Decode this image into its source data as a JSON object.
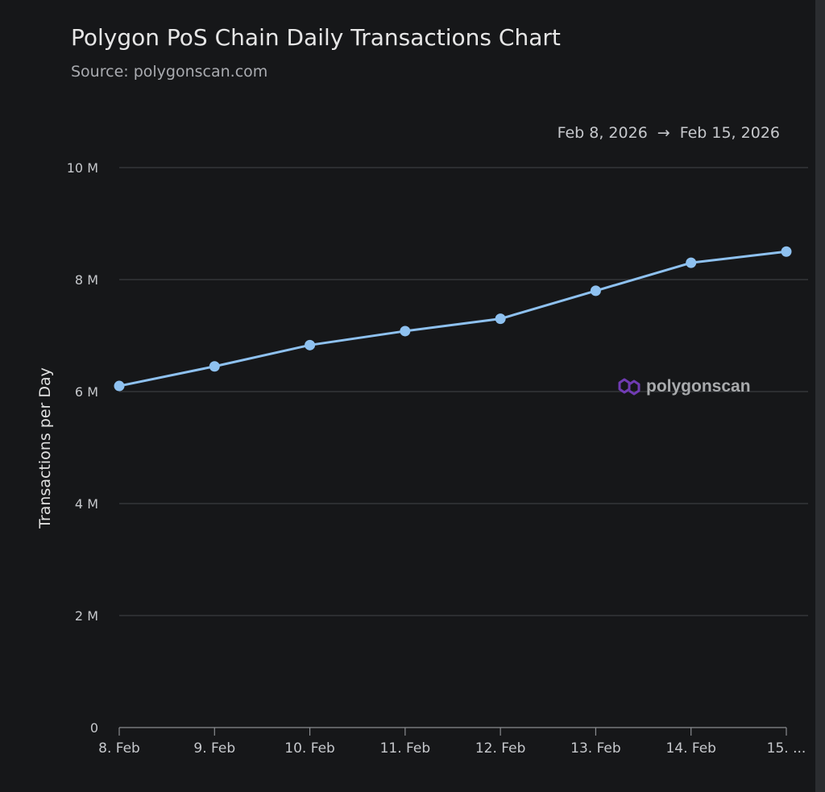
{
  "header": {
    "title": "Polygon PoS Chain Daily Transactions Chart",
    "subtitle": "Source: polygonscan.com",
    "range_start": "Feb 8, 2026",
    "range_arrow": "→",
    "range_end": "Feb 15, 2026"
  },
  "watermark": {
    "text": "polygonscan",
    "icon": "polygon-logo-icon"
  },
  "colors": {
    "background": "#161719",
    "line": "#8ec1f0",
    "grid": "#3a3c40",
    "text": "#c6c8cc",
    "watermark_icon": "#7a3fc4"
  },
  "chart_data": {
    "type": "line",
    "title": "Polygon PoS Chain Daily Transactions Chart",
    "subtitle": "Source: polygonscan.com",
    "xlabel": "",
    "ylabel": "Transactions per Day",
    "categories": [
      "8. Feb",
      "9. Feb",
      "10. Feb",
      "11. Feb",
      "12. Feb",
      "13. Feb",
      "14. Feb",
      "15. ..."
    ],
    "series": [
      {
        "values": [
          6100000,
          6450000,
          6830000,
          7080000,
          7300000,
          7800000,
          8300000,
          8500000
        ]
      }
    ],
    "ylim": [
      0,
      10000000
    ],
    "yticks": [
      0,
      2000000,
      4000000,
      6000000,
      8000000,
      10000000
    ],
    "ytick_labels": [
      "0",
      "2 M",
      "4 M",
      "6 M",
      "8 M",
      "10 M"
    ],
    "grid": true,
    "legend": "none"
  }
}
